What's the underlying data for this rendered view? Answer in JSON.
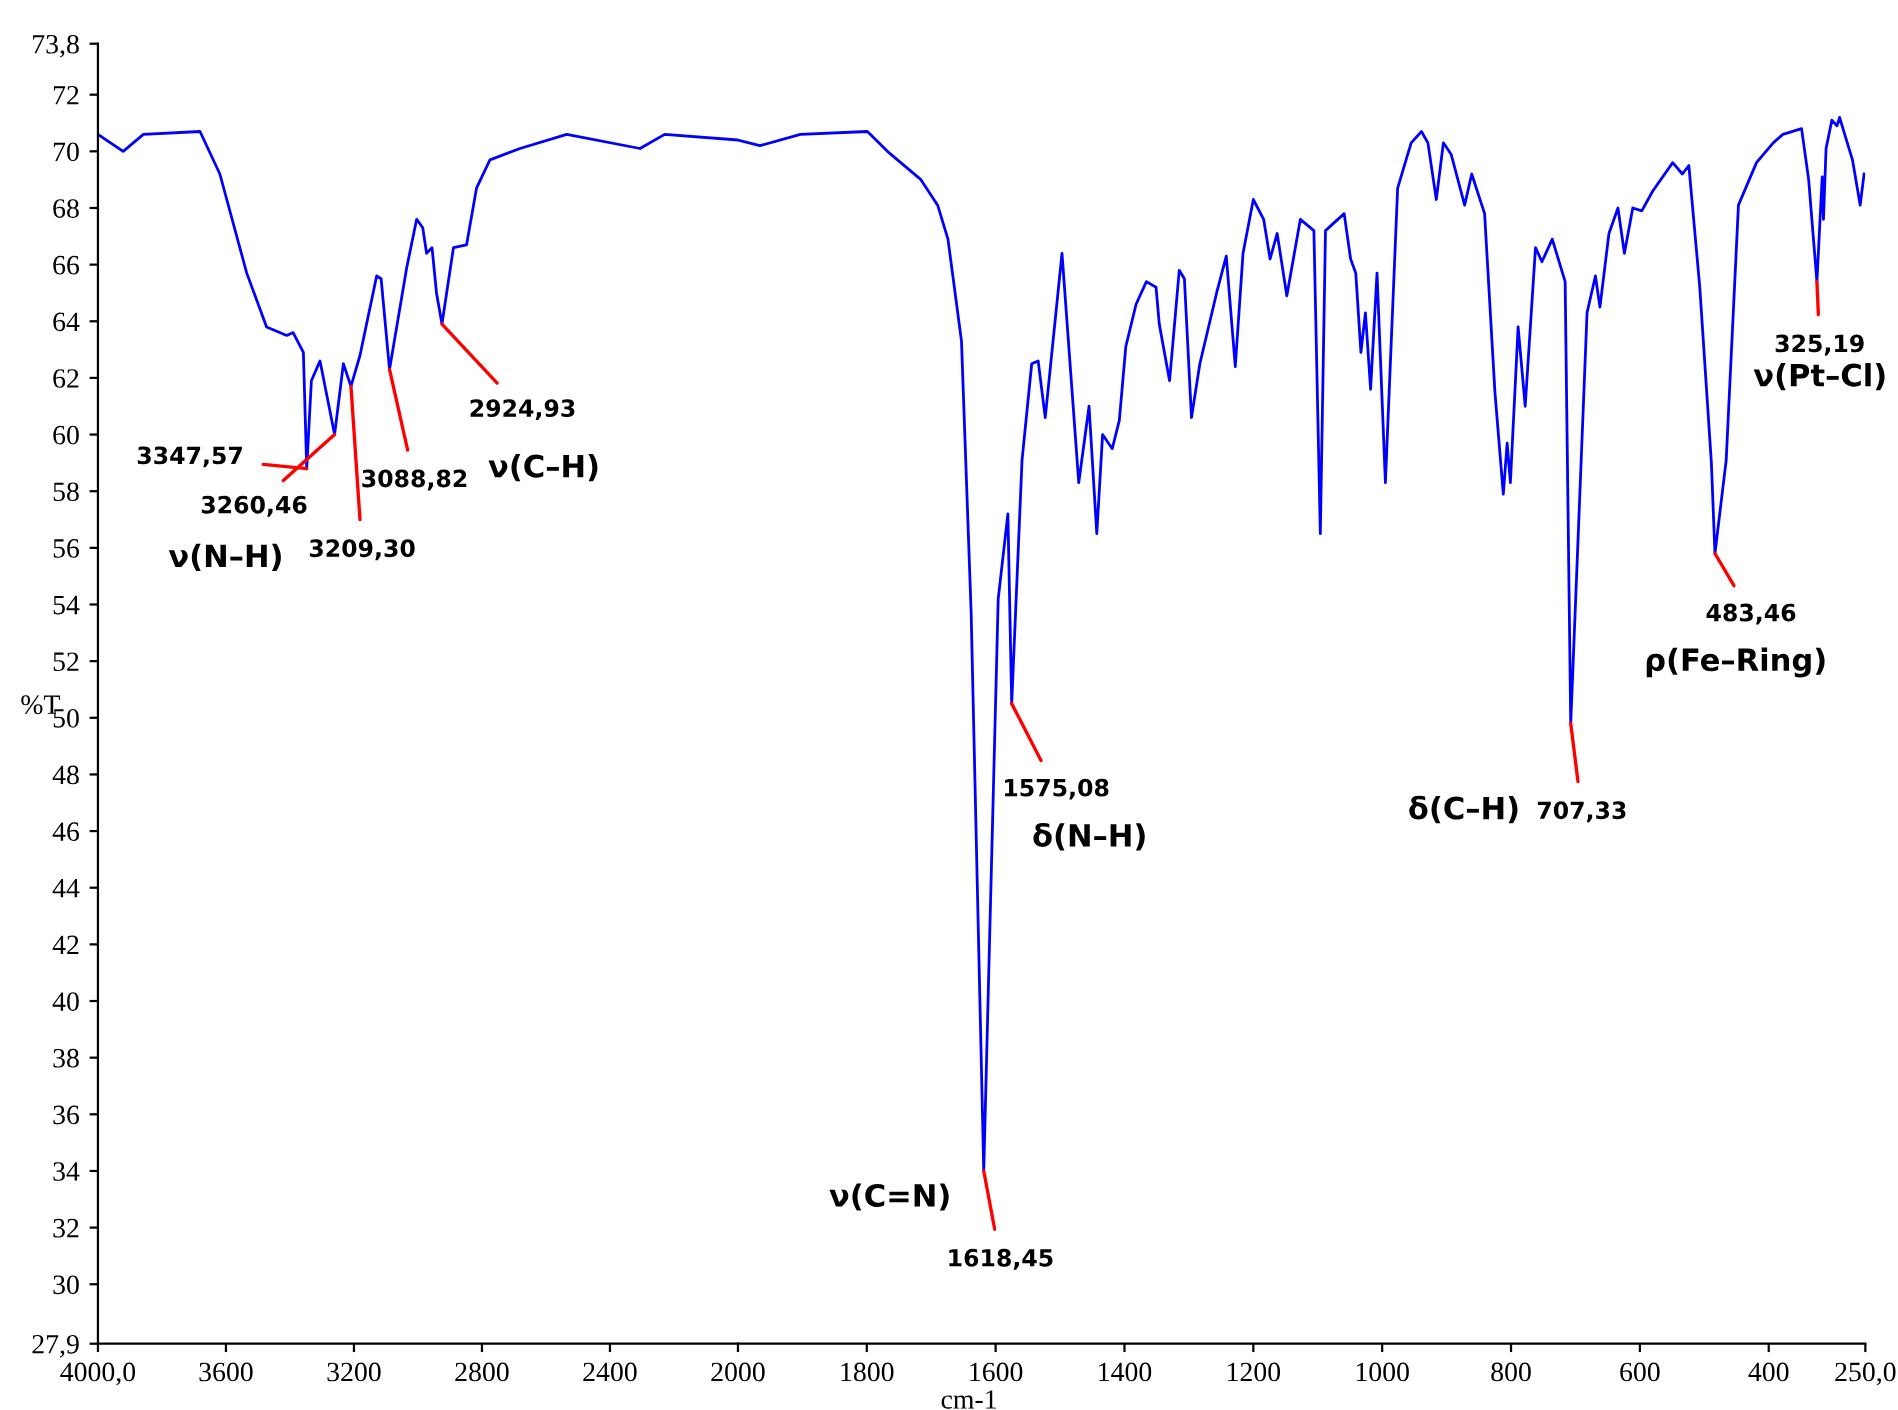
{
  "chart_data": [
    {
      "type": "line",
      "ylabel": "%T",
      "xlim": [
        4000,
        2000
      ],
      "ylim": [
        27.9,
        73.8
      ],
      "xticks": [
        {
          "value": 4000,
          "label": "4000,0"
        },
        3600,
        3200,
        2800,
        2400
      ],
      "yticks": [
        {
          "value": 27.9,
          "label": "27,9"
        },
        30,
        32,
        34,
        36,
        38,
        40,
        42,
        44,
        46,
        48,
        50,
        52,
        54,
        56,
        58,
        60,
        62,
        64,
        66,
        68,
        70,
        72,
        {
          "value": 73.8,
          "label": "73,8"
        }
      ],
      "grid": false,
      "marker": "none",
      "line_style": "solid",
      "series": [
        {
          "color": "#0000ff",
          "x": [
            4000,
            3921,
            3858,
            3681,
            3619,
            3535,
            3473,
            3410,
            3390,
            3358,
            3347.57,
            3333,
            3306,
            3260.46,
            3233,
            3209.3,
            3181,
            3129,
            3115,
            3088.82,
            3035,
            3004,
            2985,
            2973,
            2956,
            2942,
            2924.93,
            2889,
            2848,
            2817,
            2775,
            2681,
            2535,
            2306,
            2229,
            2000
          ],
          "values": [
            70.6,
            70.0,
            70.6,
            70.7,
            69.2,
            65.7,
            63.8,
            63.5,
            63.6,
            62.9,
            58.8,
            61.9,
            62.6,
            60.0,
            62.5,
            61.7,
            62.8,
            65.6,
            65.5,
            62.3,
            65.9,
            67.6,
            67.3,
            66.4,
            66.6,
            65.0,
            63.9,
            66.6,
            66.7,
            68.7,
            69.7,
            70.1,
            70.6,
            70.1,
            70.6,
            70.4
          ]
        }
      ],
      "annotations": [
        {
          "text": "3347,57",
          "x": 3347.57,
          "y": 58.8
        },
        {
          "text": "3260,46",
          "x": 3260.46,
          "y": 60.0
        },
        {
          "text": "3209,30",
          "x": 3209.3,
          "y": 61.7
        },
        {
          "text": "3088,82",
          "x": 3088.82,
          "y": 62.3
        },
        {
          "text": "2924,93",
          "x": 2924.93,
          "y": 63.9
        },
        "ν(N–H)",
        "ν(C–H)"
      ]
    },
    {
      "type": "line",
      "xlabel": "cm-1",
      "tick_labels": "x",
      "xlim": [
        2000,
        250
      ],
      "ylim": [
        27.9,
        73.8
      ],
      "xticks": [
        2000,
        1800,
        1600,
        1400,
        1200,
        1000,
        800,
        600,
        400,
        {
          "value": 250,
          "label": "250,0"
        }
      ],
      "grid": false,
      "marker": "none",
      "line_style": "solid",
      "series": [
        {
          "color": "#0000ff",
          "x": [
            2000,
            1966,
            1903,
            1799,
            1768,
            1716,
            1690,
            1674,
            1653,
            1638,
            1618.45,
            1596,
            1581,
            1575.08,
            1559,
            1544,
            1534,
            1523,
            1497,
            1471,
            1455,
            1443,
            1434,
            1419,
            1408,
            1398,
            1382,
            1366,
            1351,
            1346,
            1330,
            1315,
            1307,
            1296,
            1283,
            1257,
            1242,
            1228,
            1216,
            1200,
            1184,
            1174,
            1163,
            1148,
            1127,
            1106,
            1096,
            1088,
            1059,
            1049,
            1041,
            1033,
            1026,
            1018,
            1008,
            995,
            976,
            955,
            939,
            929,
            916,
            905,
            893,
            872,
            861,
            841,
            825,
            812,
            806,
            801,
            789,
            778,
            762,
            752,
            736,
            716,
            707.33,
            682,
            669,
            662,
            648,
            634,
            624,
            611,
            597,
            580,
            549,
            534,
            524,
            507,
            489,
            483.46,
            466,
            447,
            419,
            393,
            378,
            349,
            338,
            325.19,
            317,
            315,
            311,
            302,
            294,
            290,
            270,
            258,
            252
          ],
          "values": [
            70.4,
            70.2,
            70.6,
            70.7,
            70.0,
            69.0,
            68.1,
            66.9,
            63.3,
            53.7,
            34.0,
            54.2,
            57.2,
            50.5,
            59.1,
            62.5,
            62.6,
            60.6,
            66.4,
            58.3,
            61.0,
            56.5,
            60.0,
            59.5,
            60.5,
            63.1,
            64.6,
            65.4,
            65.2,
            63.9,
            61.9,
            65.8,
            65.5,
            60.6,
            62.5,
            65.0,
            66.3,
            62.4,
            66.4,
            68.3,
            67.6,
            66.2,
            67.1,
            64.9,
            67.6,
            67.2,
            56.5,
            67.2,
            67.8,
            66.2,
            65.7,
            62.9,
            64.3,
            61.6,
            65.7,
            58.3,
            68.7,
            70.3,
            70.7,
            70.3,
            68.3,
            70.3,
            69.9,
            68.1,
            69.2,
            67.8,
            61.5,
            57.9,
            59.7,
            58.3,
            63.8,
            61.0,
            66.6,
            66.1,
            66.9,
            65.4,
            49.8,
            64.3,
            65.6,
            64.5,
            67.1,
            68.0,
            66.4,
            68.0,
            67.9,
            68.6,
            69.6,
            69.2,
            69.5,
            65.2,
            59.0,
            55.8,
            59.1,
            68.1,
            69.6,
            70.3,
            70.6,
            70.8,
            69.0,
            65.4,
            69.1,
            67.6,
            70.1,
            71.1,
            70.9,
            71.2,
            69.7,
            68.1,
            69.2
          ]
        }
      ],
      "annotations": [
        {
          "text": "1575,08",
          "x": 1575.08,
          "y": 50.5
        },
        {
          "text": "1618,45",
          "x": 1618.45,
          "y": 34.0
        },
        {
          "text": "707,33",
          "x": 707.33,
          "y": 49.8
        },
        {
          "text": "483,46",
          "x": 483.46,
          "y": 55.8
        },
        {
          "text": "325,19",
          "x": 325.19,
          "y": 65.4
        },
        "δ(N–H)",
        "ν(C=N)",
        "δ(C–H)",
        "ρ(Fe–Ring)",
        "ν(Pt–Cl)"
      ]
    }
  ]
}
